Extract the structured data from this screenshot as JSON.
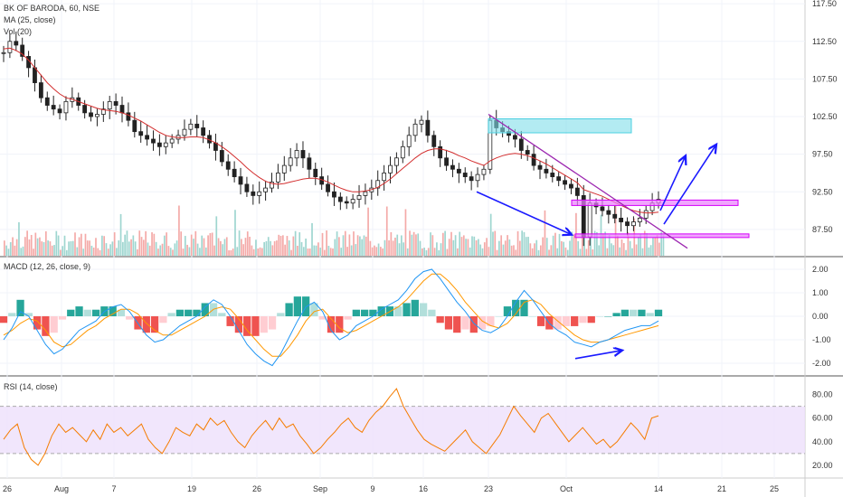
{
  "chart_data": [
    {
      "type": "candlestick",
      "title": "BK OF BARODA, 60, NSE",
      "indicators": [
        "MA (25, close)",
        "Vol (20)"
      ],
      "ylim": [
        84,
        118
      ],
      "y_ticks": [
        "117.50",
        "112.50",
        "107.50",
        "102.50",
        "97.50",
        "92.50",
        "87.50"
      ],
      "close_series": [
        111.0,
        112.5,
        112.0,
        110.5,
        109.0,
        107.0,
        105.0,
        104.0,
        103.5,
        103.0,
        104.5,
        105.0,
        104.0,
        103.0,
        102.5,
        102.8,
        103.5,
        104.5,
        104.0,
        103.0,
        102.0,
        100.5,
        100.0,
        99.5,
        99.0,
        98.5,
        99.0,
        99.5,
        100.0,
        100.8,
        101.5,
        101.0,
        100.0,
        99.0,
        98.0,
        96.5,
        95.5,
        94.5,
        93.5,
        92.5,
        92.0,
        92.5,
        93.0,
        93.8,
        95.0,
        96.0,
        97.0,
        98.0,
        97.0,
        95.5,
        94.5,
        93.5,
        92.5,
        91.8,
        91.2,
        91.0,
        91.5,
        92.0,
        92.5,
        93.0,
        94.0,
        95.0,
        96.0,
        97.0,
        98.5,
        100.0,
        101.5,
        102.0,
        100.0,
        98.5,
        97.0,
        96.0,
        95.5,
        95.0,
        94.5,
        94.0,
        94.8,
        95.5,
        102.0,
        101.0,
        100.5,
        100.0,
        99.5,
        98.0,
        97.5,
        96.0,
        95.5,
        95.0,
        94.5,
        94.0,
        93.5,
        93.0,
        92.0,
        86.5,
        91.0,
        90.5,
        90.0,
        89.5,
        89.0,
        88.5,
        88.0,
        88.5,
        89.0,
        90.0,
        91.0,
        91.5
      ],
      "ma_series": [
        111.5,
        111.6,
        111.3,
        110.8,
        110.0,
        109.0,
        108.0,
        107.0,
        106.2,
        105.5,
        105.0,
        104.8,
        104.5,
        104.2,
        103.9,
        103.6,
        103.4,
        103.3,
        103.2,
        103.0,
        102.7,
        102.3,
        101.9,
        101.4,
        100.9,
        100.4,
        100.0,
        99.8,
        99.7,
        99.7,
        99.8,
        99.8,
        99.7,
        99.4,
        99.0,
        98.5,
        97.9,
        97.2,
        96.5,
        95.7,
        95.0,
        94.4,
        93.9,
        93.6,
        93.5,
        93.6,
        93.8,
        94.0,
        94.2,
        94.3,
        94.3,
        94.1,
        93.8,
        93.4,
        93.0,
        92.7,
        92.5,
        92.5,
        92.6,
        92.8,
        93.1,
        93.6,
        94.2,
        94.9,
        95.6,
        96.3,
        97.0,
        97.6,
        98.0,
        98.2,
        98.2,
        98.0,
        97.7,
        97.3,
        97.0,
        96.6,
        96.3,
        96.0,
        96.6,
        97.0,
        97.3,
        97.5,
        97.6,
        97.5,
        97.3,
        97.0,
        96.6,
        96.2,
        95.7,
        95.2,
        94.7,
        94.2,
        93.7,
        92.8,
        92.5,
        92.2,
        91.9,
        91.5,
        91.1,
        90.7,
        90.3,
        90.0,
        89.8,
        89.7,
        89.7,
        89.8
      ],
      "annotations": [
        "descending purple trendline",
        "cyan resistance box ~102",
        "magenta boxes at ~91 and ~86.5",
        "blue arrows"
      ]
    },
    {
      "type": "bar+line",
      "title": "MACD (12, 26, close, 9)",
      "ylim": [
        -2.5,
        2.5
      ],
      "y_ticks": [
        "2.00",
        "1.00",
        "0.00",
        "-1.00",
        "-2.00"
      ],
      "macd": [
        -1.0,
        -0.5,
        0.2,
        0.0,
        -0.6,
        -1.2,
        -1.6,
        -1.4,
        -1.0,
        -0.6,
        -0.4,
        -0.2,
        0.2,
        0.4,
        0.5,
        0.2,
        -0.3,
        -0.8,
        -1.1,
        -1.0,
        -0.7,
        -0.4,
        -0.2,
        0.0,
        0.4,
        0.7,
        0.5,
        0.0,
        -0.6,
        -1.2,
        -1.6,
        -1.9,
        -2.1,
        -1.6,
        -0.9,
        -0.2,
        0.4,
        0.6,
        0.2,
        -0.6,
        -1.0,
        -0.8,
        -0.4,
        -0.2,
        0.0,
        0.3,
        0.5,
        0.7,
        1.1,
        1.6,
        1.9,
        2.0,
        1.6,
        1.1,
        0.6,
        0.2,
        -0.3,
        -0.6,
        -0.7,
        -0.5,
        0.0,
        0.6,
        1.1,
        0.7,
        0.2,
        -0.3,
        -0.6,
        -0.8,
        -1.1,
        -1.2,
        -1.3,
        -1.1,
        -1.0,
        -0.8,
        -0.6,
        -0.5,
        -0.4,
        -0.4,
        -0.2
      ],
      "signal": [
        -0.8,
        -0.6,
        -0.3,
        -0.1,
        -0.2,
        -0.6,
        -1.1,
        -1.3,
        -1.2,
        -0.9,
        -0.6,
        -0.4,
        -0.1,
        0.1,
        0.3,
        0.3,
        0.1,
        -0.3,
        -0.6,
        -0.8,
        -0.8,
        -0.6,
        -0.4,
        -0.2,
        0.0,
        0.3,
        0.4,
        0.3,
        -0.1,
        -0.6,
        -1.0,
        -1.4,
        -1.7,
        -1.7,
        -1.3,
        -0.8,
        -0.2,
        0.2,
        0.3,
        -0.1,
        -0.5,
        -0.7,
        -0.6,
        -0.4,
        -0.2,
        0.0,
        0.2,
        0.4,
        0.7,
        1.1,
        1.5,
        1.8,
        1.8,
        1.5,
        1.1,
        0.6,
        0.2,
        -0.2,
        -0.4,
        -0.5,
        -0.3,
        0.1,
        0.6,
        0.7,
        0.5,
        0.1,
        -0.2,
        -0.5,
        -0.8,
        -1.0,
        -1.1,
        -1.1,
        -1.0,
        -0.9,
        -0.8,
        -0.7,
        -0.6,
        -0.5,
        -0.4
      ]
    },
    {
      "type": "line",
      "title": "RSI (14, close)",
      "ylim": [
        10,
        95
      ],
      "y_ticks": [
        "80.00",
        "60.00",
        "40.00",
        "20.00"
      ],
      "band": [
        30,
        70
      ],
      "values": [
        42,
        50,
        55,
        35,
        25,
        20,
        30,
        45,
        55,
        48,
        52,
        46,
        40,
        50,
        42,
        55,
        48,
        52,
        45,
        50,
        55,
        42,
        35,
        30,
        40,
        52,
        48,
        45,
        55,
        50,
        60,
        54,
        58,
        48,
        40,
        35,
        45,
        52,
        58,
        50,
        60,
        52,
        55,
        45,
        38,
        30,
        35,
        42,
        48,
        55,
        60,
        52,
        48,
        58,
        65,
        70,
        78,
        85,
        70,
        60,
        50,
        42,
        38,
        35,
        32,
        38,
        44,
        50,
        40,
        35,
        30,
        38,
        46,
        58,
        70,
        62,
        55,
        48,
        60,
        64,
        56,
        48,
        40,
        46,
        52,
        45,
        38,
        42,
        35,
        40,
        48,
        56,
        50,
        42,
        60,
        62
      ]
    }
  ],
  "x_ticks": [
    "26",
    "Aug",
    "7",
    "19",
    "26",
    "Sep",
    "9",
    "16",
    "23",
    "Oct",
    "14",
    "21",
    "25"
  ],
  "colors": {
    "up": "#26a69a",
    "down": "#ef5350",
    "ma": "#d32f2f",
    "macd": "#2196f3",
    "signal": "#ff9800",
    "rsi": "#f57c00",
    "trend": "#9c27b0",
    "arrow": "#1a1aff",
    "box_cyan": "#80deea",
    "box_magenta": "#ea80fc"
  }
}
